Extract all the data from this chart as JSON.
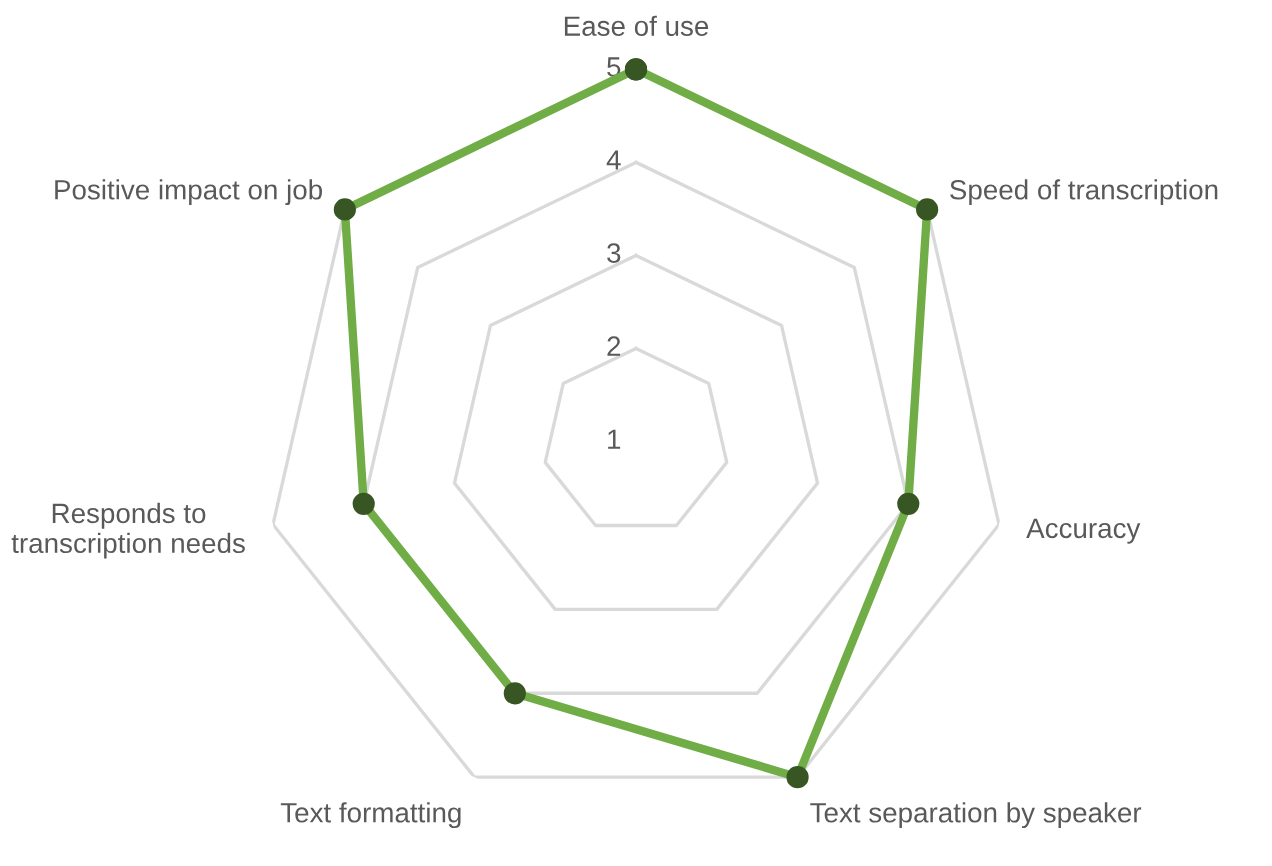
{
  "chart_data": {
    "type": "radar",
    "categories": [
      "Ease of use",
      "Speed of transcription",
      "Accuracy",
      "Text separation by speaker",
      "Text formatting",
      "Responds to\ntranscription needs",
      "Positive impact on job"
    ],
    "series": [
      {
        "color": "#70ad47",
        "values": [
          5,
          5,
          4,
          5,
          4,
          4,
          5
        ]
      }
    ],
    "ylim": [
      1,
      5
    ],
    "yticks": [
      1,
      2,
      3,
      4,
      5
    ],
    "grid": true,
    "marker": "circle"
  }
}
